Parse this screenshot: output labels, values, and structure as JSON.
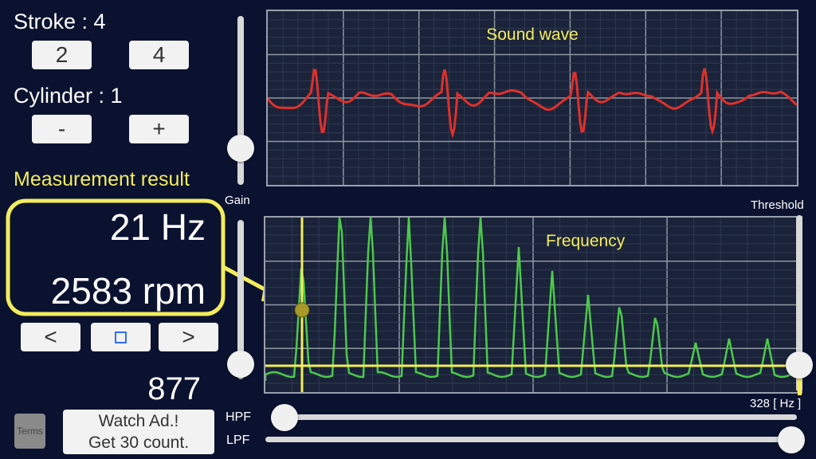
{
  "stroke": {
    "label": "Stroke : 4",
    "options": [
      "2",
      "4"
    ]
  },
  "cylinder": {
    "label": "Cylinder : 1",
    "minus": "-",
    "plus": "+"
  },
  "measurement": {
    "title": "Measurement result",
    "hz": "21 Hz",
    "rpm": "2583 rpm"
  },
  "nav": {
    "prev": "<",
    "next": ">"
  },
  "count": "877",
  "terms": "Terms",
  "watch_ad": {
    "line1": "Watch Ad.!",
    "line2": "Get 30 count."
  },
  "sliders": {
    "gain": "Gain",
    "threshold": "Threshold",
    "hpf": "HPF",
    "lpf": "LPF",
    "gain_level": 0.2,
    "second_level": 0.1,
    "threshold_level": 0.16,
    "hpf_level": 0.02,
    "lpf_level": 1.0
  },
  "wave": {
    "title": "Sound wave"
  },
  "frequency": {
    "title": "Frequency",
    "max_label": "328 [ Hz ]"
  },
  "colors": {
    "wave": "#e0302a",
    "spectrum": "#4cc94a",
    "accent": "#f3ec5c",
    "background": "#0a1230"
  }
}
